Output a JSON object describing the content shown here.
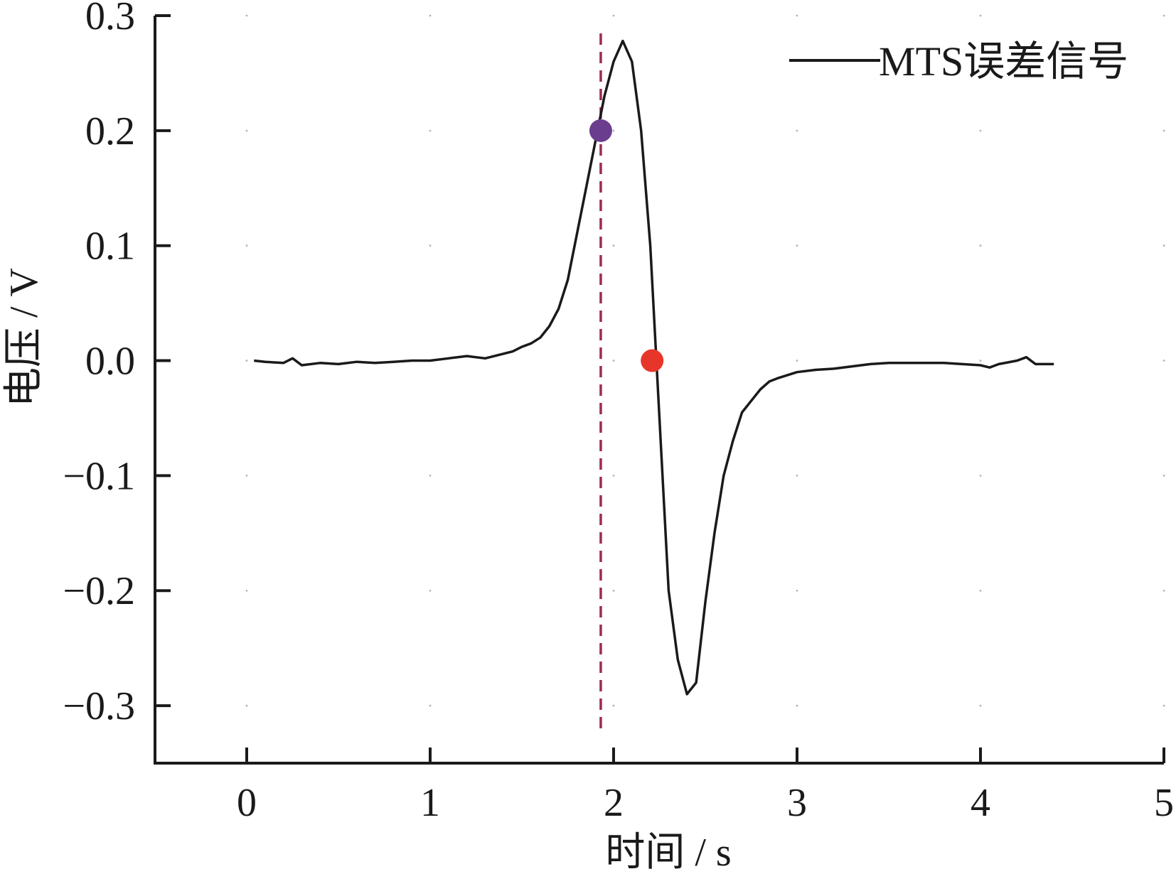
{
  "chart_data": {
    "type": "line",
    "xlabel": "时间 / s",
    "ylabel": "电压 / V",
    "xlim": [
      -0.5,
      5
    ],
    "ylim": [
      -0.35,
      0.3
    ],
    "xticks": [
      0,
      1,
      2,
      3,
      4,
      5
    ],
    "xtick_labels": [
      "0",
      "1",
      "2",
      "3",
      "4",
      "5"
    ],
    "yticks": [
      0.3,
      0.2,
      0.1,
      0.0,
      -0.1,
      -0.2,
      -0.3
    ],
    "ytick_labels": [
      "0.3",
      "0.2",
      "0.1",
      "0.0",
      "−0.1",
      "−0.2",
      "−0.3"
    ],
    "grid": "dotted points at tick intersections",
    "legend_position": "top-right",
    "series": [
      {
        "name": "MTS误差信号",
        "color": "#1a1a1a",
        "x": [
          0.04,
          0.1,
          0.2,
          0.25,
          0.3,
          0.4,
          0.5,
          0.6,
          0.7,
          0.8,
          0.9,
          1.0,
          1.1,
          1.2,
          1.3,
          1.4,
          1.45,
          1.5,
          1.55,
          1.6,
          1.65,
          1.7,
          1.75,
          1.8,
          1.85,
          1.9,
          1.95,
          2.0,
          2.05,
          2.1,
          2.15,
          2.2,
          2.25,
          2.3,
          2.35,
          2.4,
          2.45,
          2.5,
          2.55,
          2.6,
          2.65,
          2.7,
          2.75,
          2.8,
          2.85,
          2.9,
          3.0,
          3.1,
          3.2,
          3.3,
          3.4,
          3.5,
          3.6,
          3.7,
          3.8,
          3.9,
          4.0,
          4.05,
          4.1,
          4.2,
          4.25,
          4.3,
          4.4
        ],
        "y": [
          0.0,
          -0.001,
          -0.002,
          0.002,
          -0.004,
          -0.002,
          -0.003,
          -0.001,
          -0.002,
          -0.001,
          0.0,
          0.0,
          0.002,
          0.004,
          0.002,
          0.006,
          0.008,
          0.012,
          0.015,
          0.02,
          0.03,
          0.045,
          0.07,
          0.11,
          0.15,
          0.19,
          0.23,
          0.26,
          0.278,
          0.26,
          0.2,
          0.1,
          -0.05,
          -0.2,
          -0.26,
          -0.29,
          -0.28,
          -0.21,
          -0.15,
          -0.1,
          -0.07,
          -0.045,
          -0.035,
          -0.025,
          -0.018,
          -0.015,
          -0.01,
          -0.008,
          -0.007,
          -0.005,
          -0.003,
          -0.002,
          -0.002,
          -0.002,
          -0.002,
          -0.003,
          -0.004,
          -0.006,
          -0.003,
          0.0,
          0.003,
          -0.003,
          -0.003
        ]
      }
    ],
    "markers": [
      {
        "x": 1.93,
        "y": 0.2,
        "color": "#6b3d8f"
      },
      {
        "x": 2.21,
        "y": 0.0,
        "color": "#e8352a"
      }
    ],
    "reference_lines": [
      {
        "orientation": "vertical",
        "x": 1.93,
        "color": "#9e2a4f",
        "style": "dashed"
      }
    ]
  }
}
